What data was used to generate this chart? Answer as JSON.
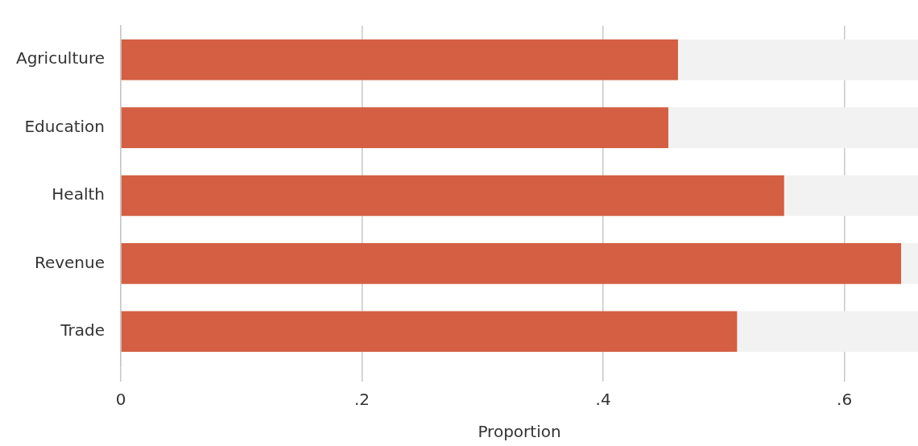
{
  "chart_data": {
    "type": "bar",
    "orientation": "horizontal",
    "stacked": true,
    "xlabel": "Proportion",
    "categories": [
      "Agriculture",
      "Education",
      "Health",
      "Revenue",
      "Trade"
    ],
    "series": [
      {
        "color": "#d45f43",
        "values": [
          0.462,
          0.454,
          0.55,
          0.647,
          0.511
        ]
      },
      {
        "color": "#f2f2f2",
        "values": [
          0.199,
          0.207,
          0.111,
          0.014,
          0.15
        ]
      }
    ],
    "xlim": [
      0,
      0.661
    ],
    "xticks": [
      {
        "value": 0,
        "label": "0"
      },
      {
        "value": 0.2,
        "label": ".2"
      },
      {
        "value": 0.4,
        "label": ".4"
      },
      {
        "value": 0.6,
        "label": ".6"
      }
    ],
    "grid": "x",
    "legend": false
  }
}
